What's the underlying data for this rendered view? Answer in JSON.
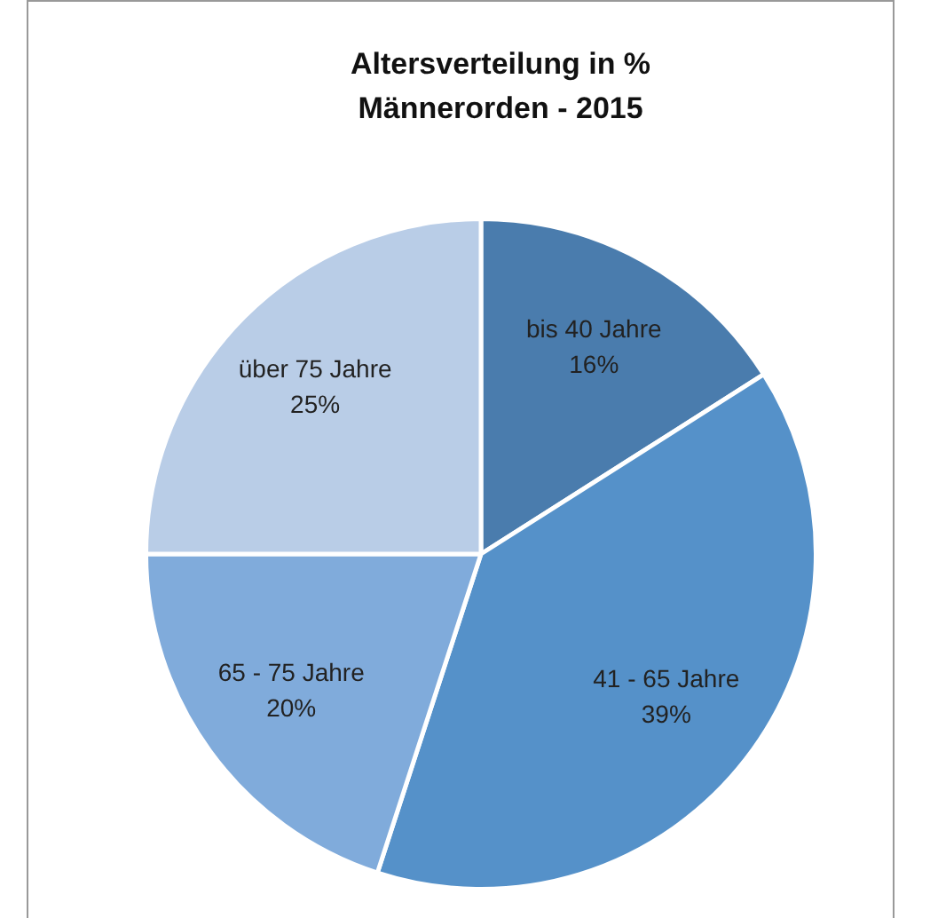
{
  "chart_data": {
    "type": "pie",
    "title": "Altersverteilung in %",
    "subtitle": "Männerorden - 2015",
    "categories": [
      "bis 40 Jahre",
      "41 - 65 Jahre",
      "65 - 75 Jahre",
      "über 75 Jahre"
    ],
    "values": [
      16,
      39,
      20,
      25
    ],
    "value_labels": [
      "16%",
      "39%",
      "20%",
      "25%"
    ],
    "colors": [
      "#4a7cad",
      "#5591c9",
      "#80abdb",
      "#b9cde7"
    ],
    "legend": false
  }
}
